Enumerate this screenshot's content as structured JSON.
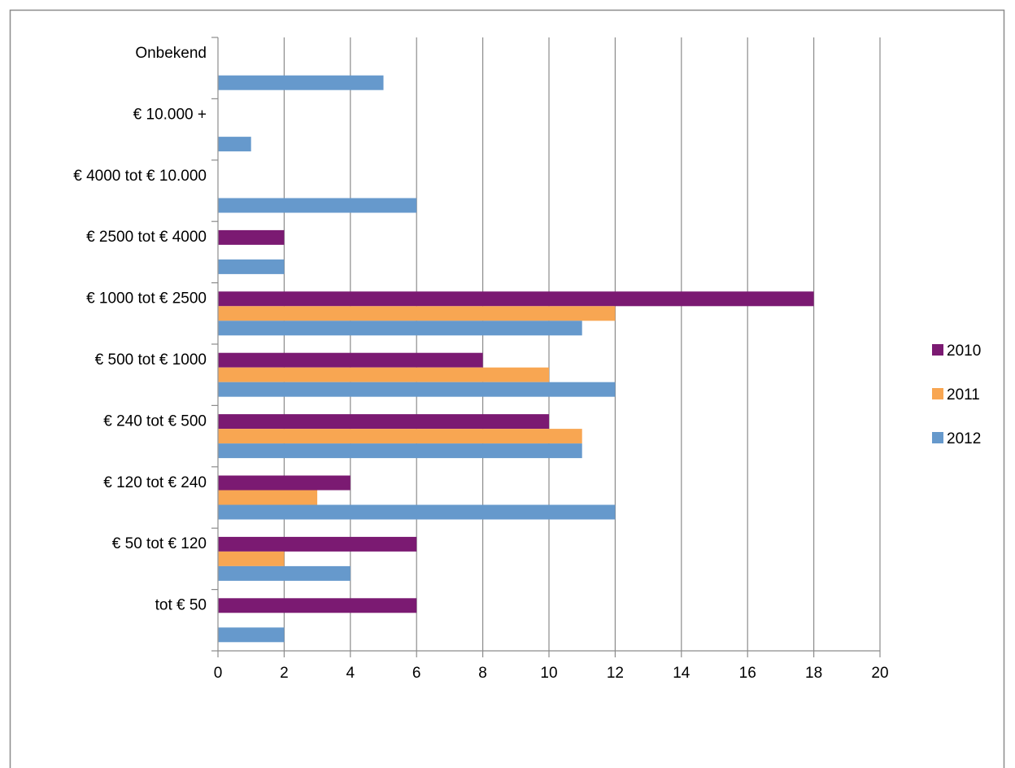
{
  "chart_data": {
    "type": "bar",
    "orientation": "horizontal",
    "categories": [
      "tot € 50",
      "€ 50 tot € 120",
      "€ 120 tot € 240",
      "€ 240 tot € 500",
      "€ 500 tot € 1000",
      "€ 1000 tot € 2500",
      "€ 2500 tot € 4000",
      "€ 4000 tot € 10.000",
      "€ 10.000 +",
      "Onbekend"
    ],
    "series": [
      {
        "name": "2010",
        "color": "#7b1a72",
        "values": [
          6,
          6,
          4,
          10,
          8,
          18,
          2,
          0,
          0,
          0
        ]
      },
      {
        "name": "2011",
        "color": "#f8a652",
        "values": [
          0,
          2,
          3,
          11,
          10,
          12,
          0,
          0,
          0,
          0
        ]
      },
      {
        "name": "2012",
        "color": "#6699cc",
        "values": [
          2,
          4,
          12,
          11,
          12,
          11,
          2,
          6,
          1,
          5
        ]
      }
    ],
    "x_ticks": [
      0,
      2,
      4,
      6,
      8,
      10,
      12,
      14,
      16,
      18,
      20
    ],
    "xlim": [
      0,
      20
    ],
    "title": "",
    "xlabel": "",
    "ylabel": "",
    "grid": "vertical",
    "legend_position": "right"
  }
}
